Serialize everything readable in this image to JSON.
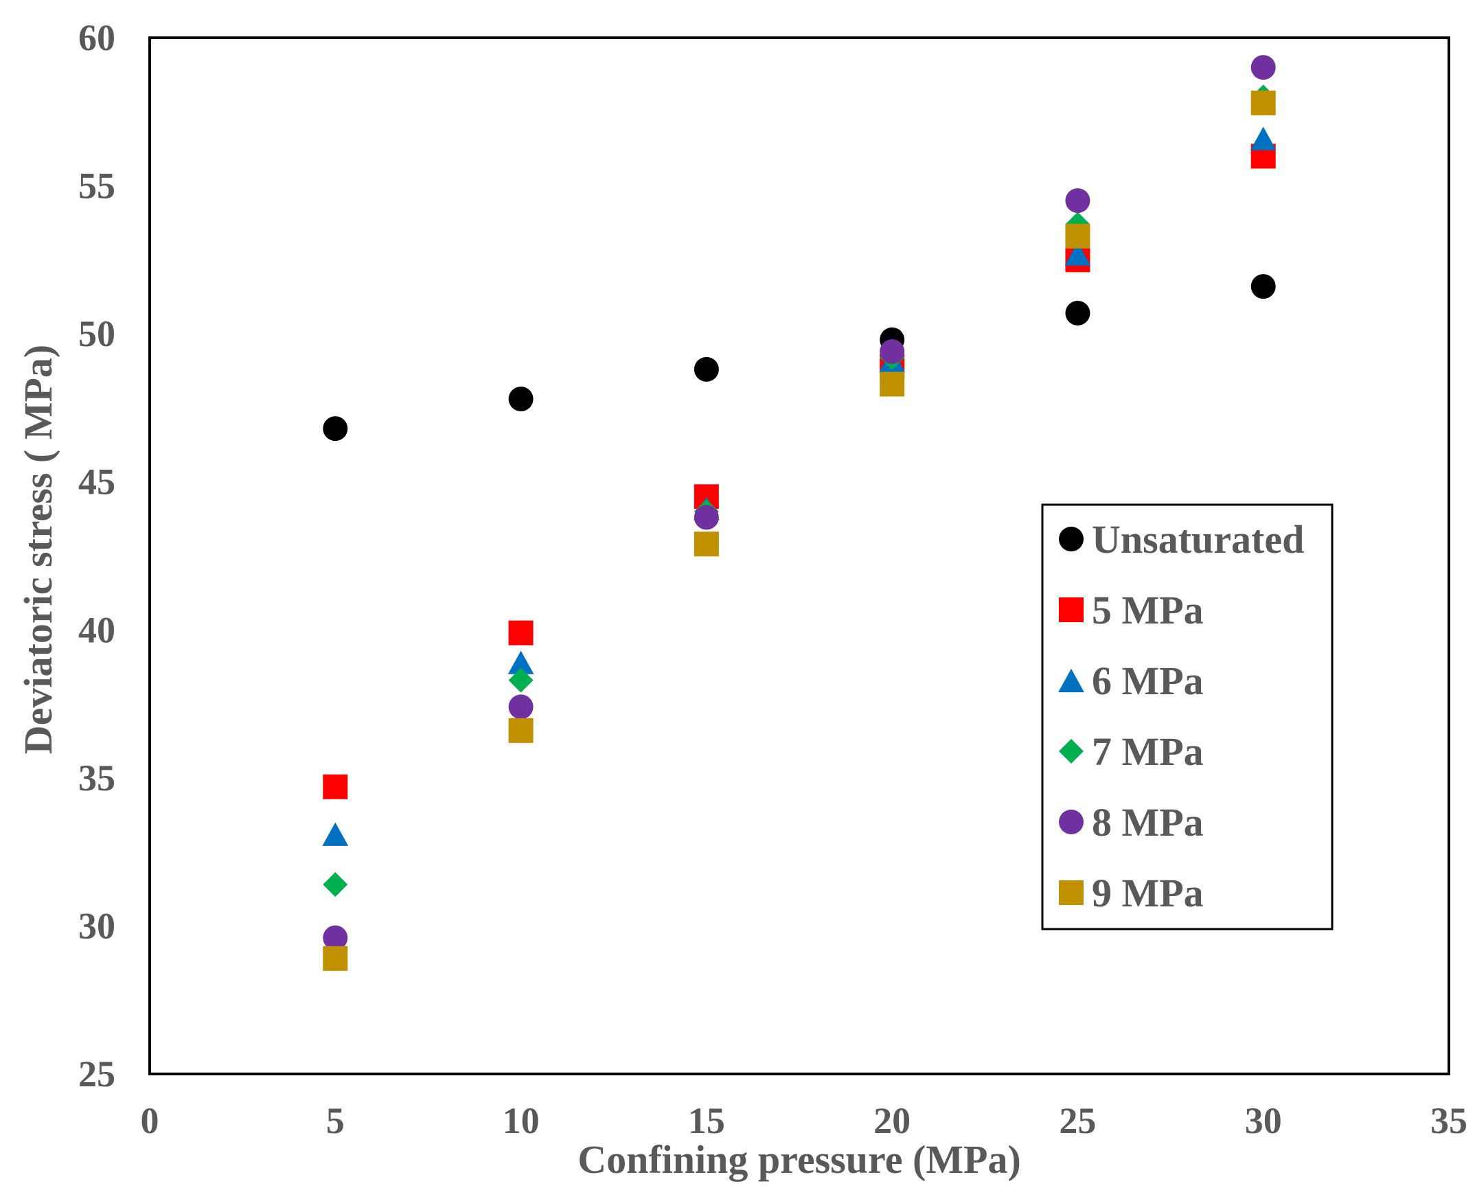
{
  "chart_data": {
    "type": "scatter",
    "title": "",
    "xlabel": "Confining pressure (MPa)",
    "ylabel": "Deviatoric stress ( MPa)",
    "xlim": [
      0,
      35
    ],
    "ylim": [
      25,
      60
    ],
    "xticks": [
      0,
      5,
      10,
      15,
      20,
      25,
      30,
      35
    ],
    "yticks": [
      25,
      30,
      35,
      40,
      45,
      50,
      55,
      60
    ],
    "xtick_labels": [
      "0",
      "5",
      "10",
      "15",
      "20",
      "25",
      "30",
      "35"
    ],
    "ytick_labels": [
      "25",
      "30",
      "35",
      "40",
      "45",
      "50",
      "55",
      "60"
    ],
    "grid": false,
    "legend_position": "right",
    "x": [
      5,
      10,
      15,
      20,
      25,
      30
    ],
    "series": [
      {
        "name": "Unsaturated",
        "marker": "circle",
        "color": "#000000",
        "values": [
          46.8,
          47.8,
          48.8,
          49.8,
          50.7,
          51.6
        ]
      },
      {
        "name": "5 MPa",
        "marker": "square",
        "color": "#ff0000",
        "values": [
          34.7,
          39.9,
          44.5,
          48.9,
          52.5,
          56.0
        ]
      },
      {
        "name": "6 MPa",
        "marker": "triangle",
        "color": "#0070c0",
        "values": [
          33.1,
          38.9,
          44.1,
          49.1,
          52.7,
          56.6
        ]
      },
      {
        "name": "7 MPa",
        "marker": "diamond",
        "color": "#00b050",
        "values": [
          31.4,
          38.3,
          44.0,
          49.2,
          53.7,
          58.0
        ]
      },
      {
        "name": "8 MPa",
        "marker": "circle",
        "color": "#7030a0",
        "values": [
          29.6,
          37.4,
          43.8,
          49.4,
          54.5,
          59.0
        ]
      },
      {
        "name": "9 MPa",
        "marker": "square",
        "color": "#bf9000",
        "values": [
          28.9,
          36.6,
          42.9,
          48.3,
          53.3,
          57.8
        ]
      }
    ]
  }
}
